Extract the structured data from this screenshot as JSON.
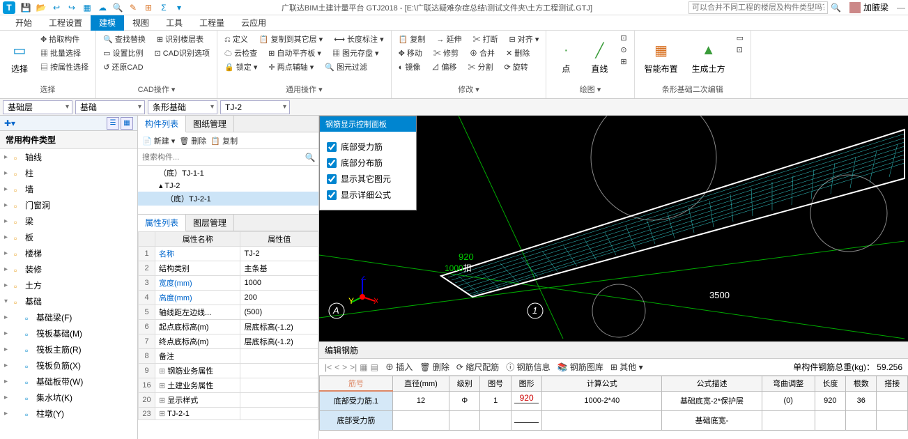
{
  "app": {
    "title": "广联达BIM土建计量平台 GTJ2018 - [E:\\广联达疑难杂症总结\\测试文件夹\\土方工程测试.GTJ]",
    "search_placeholder": "可以合并不同工程的楼层及构件类型吗？",
    "username": "加腋梁"
  },
  "menus": [
    "开始",
    "工程设置",
    "建模",
    "视图",
    "工具",
    "工程量",
    "云应用"
  ],
  "menu_active_index": 2,
  "ribbon": {
    "groups": [
      {
        "label": "选择",
        "big": [
          {
            "icon": "▭",
            "label": "选择",
            "color": "blue"
          }
        ],
        "items": [
          [
            "✥ 拾取构件"
          ],
          [
            "▦ 批量选择"
          ],
          [
            "▤ 按属性选择"
          ]
        ]
      },
      {
        "label": "CAD操作 ▾",
        "items": [
          [
            "🔍 查找替换",
            "⊞ 识别楼层表"
          ],
          [
            "▭ 设置比例",
            "⊡ CAD识别选项"
          ],
          [
            "↺ 还原CAD"
          ]
        ]
      },
      {
        "label": "通用操作 ▾",
        "items": [
          [
            "⎌ 定义",
            "📋 复制到其它层 ▾",
            "⟷ 长度标注 ▾"
          ],
          [
            "☁ 云检查",
            "⊞ 自动平齐板 ▾",
            "▦ 图元存盘 ▾"
          ],
          [
            "🔒 锁定 ▾",
            "✛ 两点辅轴 ▾",
            "🔍 图元过滤"
          ]
        ]
      },
      {
        "label": "修改 ▾",
        "items": [
          [
            "📋 复制",
            "→ 延伸",
            "✂ 打断",
            "⊟ 对齐 ▾"
          ],
          [
            "✥ 移动",
            "✂ 修剪",
            "⊕ 合并",
            "✕ 删除"
          ],
          [
            "◐ 镜像",
            "⊿ 偏移",
            "✂ 分割",
            "⟳ 旋转"
          ]
        ]
      },
      {
        "label": "绘图 ▾",
        "big": [
          {
            "icon": "·",
            "label": "点",
            "color": "green"
          },
          {
            "icon": "╱",
            "label": "直线",
            "color": "green"
          }
        ],
        "items": [
          [
            "⊡"
          ],
          [
            "⊙"
          ],
          [
            "⊞"
          ]
        ]
      },
      {
        "label": "条形基础二次编辑",
        "big": [
          {
            "icon": "▦",
            "label": "智能布置",
            "color": "orange"
          },
          {
            "icon": "▲",
            "label": "生成土方",
            "color": "green"
          }
        ],
        "items": [
          [
            "▭"
          ],
          [
            "⊡"
          ]
        ]
      }
    ]
  },
  "dropdowns": [
    "基础层",
    "基础",
    "条形基础",
    "TJ-2"
  ],
  "left_tree": {
    "header": "常用构件类型",
    "items": [
      {
        "label": "轴线",
        "icon": "#e8a020"
      },
      {
        "label": "柱",
        "icon": "#e8a020"
      },
      {
        "label": "墙",
        "icon": "#e8a020"
      },
      {
        "label": "门窗洞",
        "icon": "#e8a020"
      },
      {
        "label": "梁",
        "icon": "#e8a020"
      },
      {
        "label": "板",
        "icon": "#e8a020"
      },
      {
        "label": "楼梯",
        "icon": "#e8a020"
      },
      {
        "label": "装修",
        "icon": "#e8a020"
      },
      {
        "label": "土方",
        "icon": "#e8a020"
      },
      {
        "label": "基础",
        "icon": "#e8a020",
        "expanded": true,
        "children": [
          {
            "label": "基础梁(F)",
            "icon": "#0088cc"
          },
          {
            "label": "筏板基础(M)",
            "icon": "#0088cc"
          },
          {
            "label": "筏板主筋(R)",
            "icon": "#0088cc"
          },
          {
            "label": "筏板负筋(X)",
            "icon": "#0088cc"
          },
          {
            "label": "基础板带(W)",
            "icon": "#0088cc"
          },
          {
            "label": "集水坑(K)",
            "icon": "#0088cc"
          },
          {
            "label": "柱墩(Y)",
            "icon": "#0088cc"
          }
        ]
      }
    ]
  },
  "mid": {
    "tabs": [
      "构件列表",
      "图纸管理"
    ],
    "toolbar": [
      "📄 新建 ▾",
      "🗑 删除",
      "📋 复制"
    ],
    "search_placeholder": "搜索构件...",
    "tree": [
      {
        "label": "（底）TJ-1-1",
        "level": 1
      },
      {
        "label": "▴ TJ-2",
        "level": 1
      },
      {
        "label": "（底）TJ-2-1",
        "level": 2,
        "selected": true
      }
    ],
    "prop_tabs": [
      "属性列表",
      "图层管理"
    ],
    "prop_headers": [
      "",
      "属性名称",
      "属性值"
    ],
    "props": [
      {
        "n": "1",
        "name": "名称",
        "val": "TJ-2",
        "blue": true
      },
      {
        "n": "2",
        "name": "结构类别",
        "val": "主条基"
      },
      {
        "n": "3",
        "name": "宽度(mm)",
        "val": "1000",
        "blue": true
      },
      {
        "n": "4",
        "name": "高度(mm)",
        "val": "200",
        "blue": true
      },
      {
        "n": "5",
        "name": "轴线距左边线...",
        "val": "(500)"
      },
      {
        "n": "6",
        "name": "起点底标高(m)",
        "val": "层底标高(-1.2)"
      },
      {
        "n": "7",
        "name": "终点底标高(m)",
        "val": "层底标高(-1.2)"
      },
      {
        "n": "8",
        "name": "备注",
        "val": ""
      },
      {
        "n": "9",
        "name": "钢筋业务属性",
        "val": "",
        "exp": true
      },
      {
        "n": "16",
        "name": "土建业务属性",
        "val": "",
        "exp": true
      },
      {
        "n": "20",
        "name": "显示样式",
        "val": "",
        "exp": true
      },
      {
        "n": "23",
        "name": "TJ-2-1",
        "val": "",
        "exp": true
      }
    ]
  },
  "floating": {
    "title": "钢筋显示控制面板",
    "checks": [
      "底部受力筋",
      "底部分布筋",
      "显示其它图元",
      "显示详细公式"
    ]
  },
  "canvas": {
    "dim1": "920",
    "dim1_pos": "372,195",
    "dim2_a": "1000",
    "dim2_b": "扣",
    "dim2_pos": "370,210",
    "dim3": "3500",
    "dim3_pos": "740,250",
    "axis_a": "A",
    "axis_a_pos": "16,272",
    "axis_1": "1",
    "axis_1_pos": "498,270"
  },
  "bottom": {
    "title": "编辑钢筋",
    "toolbar": [
      "⊕ 插入",
      "🗑 删除",
      "⟳ 缩尺配筋",
      "ⓘ 钢筋信息",
      "📚 钢筋图库",
      "⊞ 其他 ▾"
    ],
    "summary_label": "单构件钢筋总重(kg)：",
    "summary_val": "59.256",
    "headers": [
      "筋号",
      "直径(mm)",
      "级别",
      "图号",
      "图形",
      "计算公式",
      "公式描述",
      "弯曲调整",
      "长度",
      "根数",
      "搭接"
    ],
    "header_active": 0,
    "rows": [
      {
        "cells": [
          "底部受力筋.1",
          "12",
          "Φ",
          "1",
          "",
          "1000-2*40",
          "基础底宽-2*保护层",
          "(0)",
          "920",
          "36",
          ""
        ],
        "shape_val": "920"
      },
      {
        "cells": [
          "底部受力筋",
          "",
          "",
          "",
          "",
          "",
          "基础底宽-",
          "",
          "",
          "",
          ""
        ],
        "shape_val": ""
      }
    ]
  }
}
